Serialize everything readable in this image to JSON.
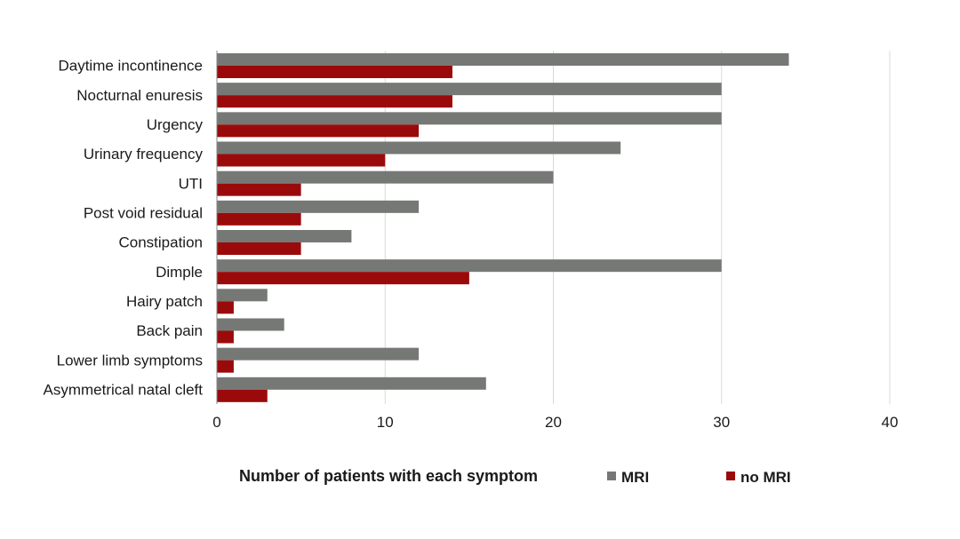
{
  "chart_data": {
    "type": "bar",
    "orientation": "horizontal",
    "categories": [
      "Daytime incontinence",
      "Nocturnal enuresis",
      "Urgency",
      "Urinary frequency",
      "UTI",
      "Post void residual",
      "Constipation",
      "Dimple",
      "Hairy patch",
      "Back pain",
      "Lower limb symptoms",
      "Asymmetrical natal cleft"
    ],
    "series": [
      {
        "name": "MRI",
        "color": "#767876",
        "values": [
          34,
          30,
          30,
          24,
          20,
          12,
          8,
          30,
          3,
          4,
          12,
          16
        ]
      },
      {
        "name": "no MRI",
        "color": "#9b0a0a",
        "values": [
          14,
          14,
          12,
          10,
          5,
          5,
          5,
          15,
          1,
          1,
          1,
          3
        ]
      }
    ],
    "xlabel": "Number of patients with each symptom",
    "xlim": [
      0,
      40
    ],
    "xticks": [
      "0",
      "10",
      "20",
      "30",
      "40"
    ],
    "grid": "vertical",
    "legend_position": "bottom"
  }
}
